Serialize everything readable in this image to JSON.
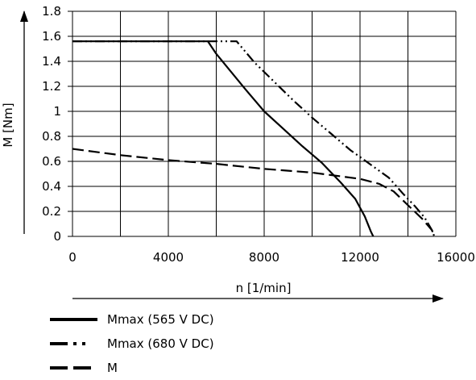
{
  "chart_data": {
    "type": "line",
    "title": "",
    "xlabel": "n [1/min]",
    "ylabel": "M [Nm]",
    "xlim": [
      0,
      16000
    ],
    "ylim": [
      0,
      1.8
    ],
    "x_ticks": [
      "0",
      "4000",
      "8000",
      "12000",
      "16000"
    ],
    "y_ticks": [
      "0",
      "0.2",
      "0.4",
      "0.6",
      "0.8",
      "1",
      "1.2",
      "1.4",
      "1.6",
      "1.8"
    ],
    "grid": true,
    "legend_position": "bottom",
    "series": [
      {
        "name": "Mmax (565 V DC)",
        "style": "solid",
        "x": [
          0,
          5650,
          6000,
          6600,
          7200,
          8000,
          8800,
          9600,
          10400,
          11200,
          11800,
          12200,
          12450,
          12550
        ],
        "y": [
          1.56,
          1.56,
          1.46,
          1.32,
          1.18,
          1.0,
          0.86,
          0.72,
          0.59,
          0.43,
          0.3,
          0.16,
          0.04,
          0
        ]
      },
      {
        "name": "Mmax (680 V DC)",
        "style": "dash-dot-dot",
        "x": [
          0,
          6850,
          7600,
          8400,
          9200,
          10000,
          10800,
          11600,
          12400,
          13200,
          13800,
          14300,
          14700,
          15000,
          15100
        ],
        "y": [
          1.56,
          1.56,
          1.39,
          1.24,
          1.09,
          0.95,
          0.82,
          0.69,
          0.58,
          0.47,
          0.34,
          0.24,
          0.15,
          0.05,
          0
        ]
      },
      {
        "name": "M",
        "style": "dashed",
        "x": [
          0,
          2000,
          4000,
          6000,
          8000,
          10000,
          12000,
          12800,
          13400,
          14000,
          14600,
          15000,
          15100
        ],
        "y": [
          0.7,
          0.65,
          0.61,
          0.58,
          0.54,
          0.51,
          0.46,
          0.42,
          0.36,
          0.25,
          0.14,
          0.05,
          0
        ]
      }
    ]
  }
}
